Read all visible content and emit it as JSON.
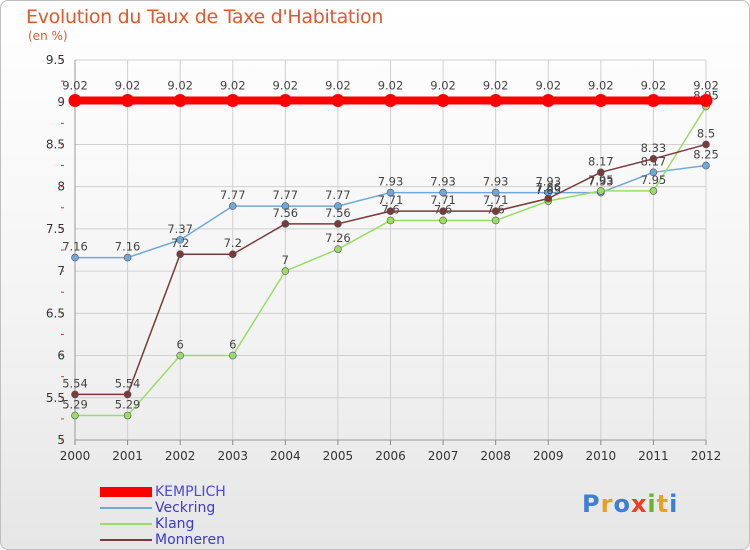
{
  "header": {
    "title": "Evolution du Taux de Taxe d'Habitation",
    "subtitle": "(en %)"
  },
  "logo": {
    "text": "Proxiti"
  },
  "colors": {
    "title": "#e4572e",
    "grid": "#d0d0d0",
    "tick_mark": "#e03030"
  },
  "chart_data": {
    "type": "line",
    "x": [
      "2000",
      "2001",
      "2002",
      "2003",
      "2004",
      "2005",
      "2006",
      "2007",
      "2008",
      "2009",
      "2010",
      "2011",
      "2012"
    ],
    "ylim": [
      5,
      9.5
    ],
    "yticks": [
      "5",
      "5.5",
      "6",
      "6.5",
      "7",
      "7.5",
      "8",
      "8.5",
      "9",
      "9.5"
    ],
    "grid": true,
    "legend_position": "bottom-left",
    "series": [
      {
        "name": "KEMPLICH",
        "color": "#ff0000",
        "values": [
          9.02,
          9.02,
          9.02,
          9.02,
          9.02,
          9.02,
          9.02,
          9.02,
          9.02,
          9.02,
          9.02,
          9.02,
          9.02
        ],
        "labels": [
          "9.02",
          "9.02",
          "9.02",
          "9.02",
          "9.02",
          "9.02",
          "9.02",
          "9.02",
          "9.02",
          "9.02",
          "9.02",
          "9.02",
          "9.02"
        ]
      },
      {
        "name": "Veckring",
        "color": "#6fa8dc",
        "values": [
          7.16,
          7.16,
          7.37,
          7.77,
          7.77,
          7.77,
          7.93,
          7.93,
          7.93,
          7.93,
          7.93,
          8.17,
          8.25
        ],
        "labels": [
          "7.16",
          "7.16",
          "7.37",
          "7.77",
          "7.77",
          "7.77",
          "7.93",
          "7.93",
          "7.93",
          "7.93",
          "7.93",
          "8.17",
          "8.25"
        ]
      },
      {
        "name": "Klang",
        "color": "#99dd66",
        "values": [
          5.29,
          5.29,
          6,
          6,
          7,
          7.26,
          7.6,
          7.6,
          7.6,
          7.83,
          7.95,
          7.95,
          8.95
        ],
        "labels": [
          "5.29",
          "5.29",
          "6",
          "6",
          "7",
          "7.26",
          "7.6",
          "7.6",
          "7.6",
          "7.83",
          "7.95",
          "7.95",
          "8.95"
        ]
      },
      {
        "name": "Monneren",
        "color": "#7b3a3a",
        "values": [
          5.54,
          5.54,
          7.2,
          7.2,
          7.56,
          7.56,
          7.71,
          7.71,
          7.71,
          7.86,
          8.17,
          8.33,
          8.5
        ],
        "labels": [
          "5.54",
          "5.54",
          "7.2",
          "7.2",
          "7.56",
          "7.56",
          "7.71",
          "7.71",
          "7.71",
          "7.86",
          "8.17",
          "8.33",
          "8.5"
        ]
      }
    ]
  }
}
